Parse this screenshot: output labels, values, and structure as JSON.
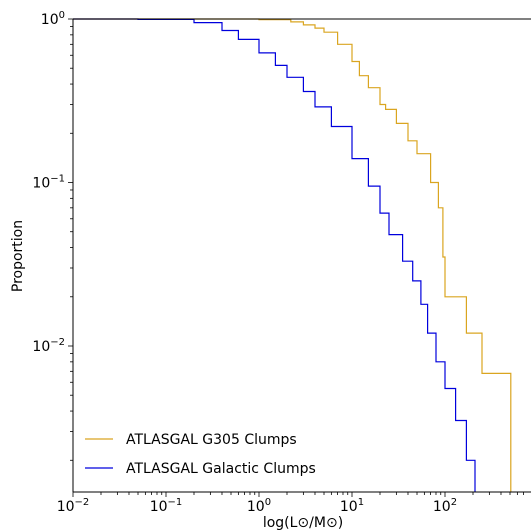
{
  "chart_data": {
    "type": "line",
    "subtype": "step (complementary cumulative distribution)",
    "xlabel": "log(L⊙/M⊙)",
    "ylabel": "Proportion",
    "xscale": "log",
    "yscale": "log",
    "xlim": [
      0.01,
      700
    ],
    "ylim": [
      0.0013,
      1.0
    ],
    "xticks": [
      {
        "value": 0.01,
        "base": "10",
        "exp": "−2"
      },
      {
        "value": 0.1,
        "base": "10",
        "exp": "−1"
      },
      {
        "value": 1,
        "base": "10",
        "exp": "0"
      },
      {
        "value": 10,
        "base": "10",
        "exp": "1"
      },
      {
        "value": 100,
        "base": "10",
        "exp": "2"
      }
    ],
    "yticks": [
      {
        "value": 1,
        "base": "10",
        "exp": "0"
      },
      {
        "value": 0.1,
        "base": "10",
        "exp": "−1"
      },
      {
        "value": 0.01,
        "base": "10",
        "exp": "−2"
      }
    ],
    "grid": false,
    "legend_position": "lower-left",
    "series": [
      {
        "name": "ATLASGAL G305 Clumps",
        "color": "#daa520",
        "x": [
          0.01,
          1.0,
          2.2,
          3.0,
          4.0,
          5.0,
          7.0,
          10.0,
          12.0,
          15.0,
          20.0,
          23.0,
          30.0,
          40.0,
          50.0,
          70.0,
          85.0,
          95.0,
          100.0,
          170.0,
          250.0,
          510.0
        ],
        "y": [
          1.0,
          0.99,
          0.96,
          0.92,
          0.88,
          0.83,
          0.7,
          0.55,
          0.45,
          0.38,
          0.3,
          0.28,
          0.23,
          0.18,
          0.15,
          0.1,
          0.07,
          0.035,
          0.02,
          0.012,
          0.0068,
          0.0013
        ]
      },
      {
        "name": "ATLASGAL Galactic Clumps",
        "color": "#0000dd",
        "x": [
          0.01,
          0.05,
          0.2,
          0.4,
          0.6,
          1.0,
          1.5,
          2.0,
          3.0,
          4.0,
          6.0,
          10.0,
          15.0,
          20.0,
          25.0,
          35.0,
          45.0,
          55.0,
          65.0,
          80.0,
          100.0,
          130.0,
          170.0,
          210.0
        ],
        "y": [
          1.0,
          0.995,
          0.95,
          0.85,
          0.75,
          0.62,
          0.52,
          0.44,
          0.36,
          0.29,
          0.22,
          0.14,
          0.095,
          0.065,
          0.048,
          0.033,
          0.025,
          0.018,
          0.012,
          0.008,
          0.0055,
          0.0035,
          0.002,
          0.0013
        ]
      }
    ]
  }
}
